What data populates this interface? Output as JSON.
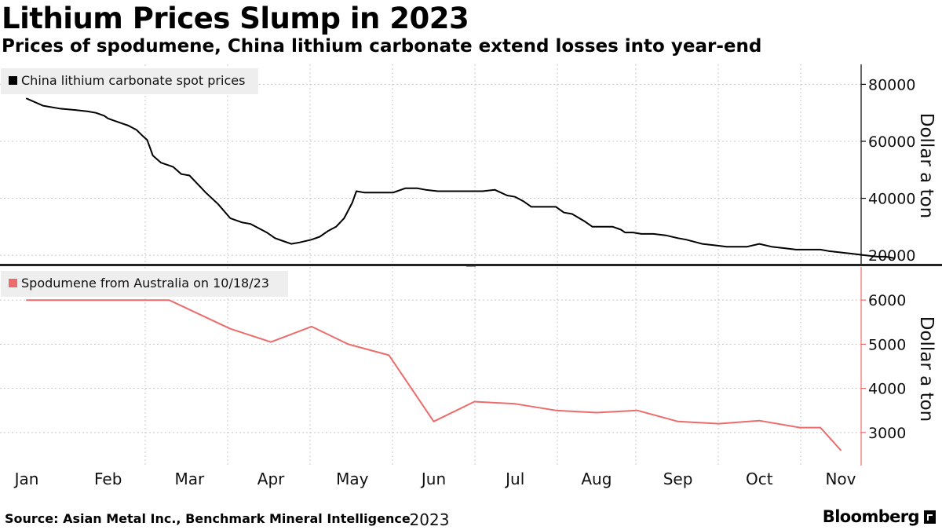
{
  "title": "Lithium Prices Slump in 2023",
  "subtitle": "Prices of spodumene, China lithium carbonate extend losses into year-end",
  "source": "Source: Asian Metal Inc., Benchmark Mineral Intelligence",
  "brand": "Bloomberg",
  "colors": {
    "top_line": "#000000",
    "bottom_line": "#ee6b6b",
    "grid": "#c8c8c8",
    "legend_bg": "#eeeeee"
  },
  "chart_data": [
    {
      "type": "line",
      "panel": "top",
      "series": [
        {
          "name": "China lithium carbonate spot prices",
          "color": "#000000",
          "x": [
            0,
            0.2,
            0.4,
            0.6,
            0.75,
            0.85,
            0.95,
            1.0,
            1.05,
            1.15,
            1.25,
            1.35,
            1.42,
            1.48,
            1.55,
            1.65,
            1.8,
            1.9,
            2.0,
            2.1,
            2.2,
            2.35,
            2.5,
            2.65,
            2.75,
            2.85,
            2.95,
            3.05,
            3.15,
            3.25,
            3.35,
            3.5,
            3.6,
            3.7,
            3.8,
            3.9,
            4.0,
            4.05,
            4.15,
            4.25,
            4.35,
            4.5,
            4.55,
            4.65,
            4.8,
            4.9,
            5.05,
            5.2,
            5.3,
            5.45,
            5.5,
            5.6,
            5.75,
            5.9,
            6.0,
            6.1,
            6.2,
            6.35,
            6.5,
            6.6,
            6.7,
            6.85,
            6.95,
            7.0,
            7.1,
            7.2,
            7.3,
            7.35,
            7.45,
            7.55,
            7.7,
            7.85,
            8.0,
            8.1,
            8.3,
            8.45,
            8.6,
            8.75,
            8.85,
            9.0,
            9.15,
            9.3,
            9.45,
            9.6,
            9.75,
            9.85,
            10.0,
            10.15,
            10.3,
            10.45,
            10.55,
            10.65
          ],
          "y": [
            75000,
            72500,
            71500,
            71000,
            70500,
            70000,
            69000,
            68000,
            67500,
            66500,
            65500,
            64000,
            62000,
            60500,
            55000,
            52500,
            51000,
            48500,
            48000,
            45000,
            42000,
            38000,
            33000,
            31500,
            31000,
            29500,
            28000,
            26000,
            25000,
            24000,
            24500,
            25500,
            26500,
            28500,
            30000,
            33000,
            38500,
            42500,
            42000,
            42000,
            42000,
            42000,
            42500,
            43500,
            43500,
            43000,
            42500,
            42500,
            42500,
            42500,
            42500,
            42500,
            43000,
            41000,
            40500,
            39000,
            37000,
            37000,
            37000,
            35000,
            34500,
            32000,
            30000,
            30000,
            30000,
            30000,
            29000,
            28000,
            28000,
            27500,
            27500,
            27000,
            26000,
            25500,
            24000,
            23500,
            23000,
            23000,
            23000,
            24000,
            23000,
            22500,
            22000,
            22000,
            22000,
            21500,
            21000,
            20500,
            20000,
            19500,
            19500,
            19000
          ]
        }
      ],
      "ylim": [
        17000,
        87000
      ],
      "yticks": [
        "80000",
        "60000",
        "40000",
        "20000"
      ],
      "ylabel": "Dollar a ton",
      "legend_position": "top-left"
    },
    {
      "type": "line",
      "panel": "bottom",
      "series": [
        {
          "name": "Spodumene from Australia on 10/18/23",
          "color": "#ee6b6b",
          "x": [
            0,
            0.75,
            1.75,
            2.5,
            3.0,
            3.5,
            3.95,
            4.45,
            5.0,
            5.5,
            6.0,
            6.5,
            7.0,
            7.5,
            8.0,
            8.5,
            9.0,
            9.5,
            9.75
          ],
          "y": [
            6000,
            6000,
            6000,
            5350,
            5050,
            5400,
            5000,
            4750,
            3250,
            3700,
            3650,
            3500,
            3450,
            3500,
            3250,
            3200,
            3270,
            3110,
            3110
          ]
        },
        {
          "name": "Spodumene from Australia on 10/18/23 (Oct)",
          "color": "#ee6b6b",
          "x": [
            9.75,
            10.0
          ],
          "y": [
            3110,
            2600
          ]
        }
      ],
      "ylim": [
        2250,
        6750
      ],
      "yticks": [
        "6000",
        "5000",
        "4000",
        "3000"
      ],
      "ylabel": "Dollar a ton",
      "legend_position": "top-left"
    }
  ],
  "x_axis": {
    "months": [
      "Jan",
      "Feb",
      "Mar",
      "Apr",
      "May",
      "Jun",
      "Jul",
      "Aug",
      "Sep",
      "Oct",
      "Nov"
    ],
    "year": "2023"
  }
}
